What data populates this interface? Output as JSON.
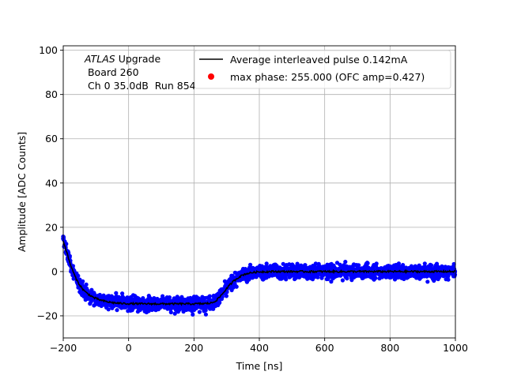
{
  "chart_data": {
    "type": "scatter",
    "xlabel": "Time [ns]",
    "ylabel": "Amplitude [ADC Counts]",
    "xlim": [
      -200,
      1000
    ],
    "ylim": [
      -30,
      102
    ],
    "x_ticks": [
      -200,
      0,
      200,
      400,
      600,
      800,
      1000
    ],
    "y_ticks": [
      -20,
      0,
      20,
      40,
      60,
      80,
      100
    ],
    "grid": true,
    "legend_placement": "top-right",
    "annotation": {
      "line1_italic": "ATLAS",
      "line1_rest": " Upgrade",
      "line2": " Board 260",
      "line3": " Ch 0 35.0dB  Run 854"
    },
    "series": [
      {
        "name": "max phase: 255.000 (OFC amp=0.427)",
        "kind": "scatter-band",
        "color": "#0000ff",
        "legend_marker_color": "#ff0000",
        "noise_sigma": 2.2,
        "spread_y": 7
      },
      {
        "name": "Average interleaved pulse 0.142mA",
        "kind": "line",
        "color": "#000000",
        "x": [
          -200,
          -190,
          -180,
          -170,
          -160,
          -150,
          -140,
          -130,
          -120,
          -110,
          -100,
          -80,
          -60,
          -40,
          -20,
          0,
          50,
          100,
          150,
          200,
          230,
          250,
          260,
          270,
          280,
          290,
          300,
          310,
          320,
          330,
          340,
          350,
          360,
          380,
          400,
          450,
          500,
          600,
          700,
          800,
          900,
          1000
        ],
        "y": [
          14,
          9,
          4,
          0,
          -3.5,
          -6,
          -8,
          -9.5,
          -10.5,
          -11.5,
          -12.2,
          -13.2,
          -13.8,
          -14.2,
          -14.4,
          -14.5,
          -14.6,
          -14.6,
          -14.6,
          -14.6,
          -14.5,
          -14.3,
          -13.8,
          -12.8,
          -11.3,
          -9.5,
          -7.7,
          -6,
          -4.5,
          -3.3,
          -2.3,
          -1.5,
          -1,
          -0.4,
          -0.1,
          0,
          0,
          0,
          0,
          0,
          0,
          0
        ]
      }
    ]
  }
}
